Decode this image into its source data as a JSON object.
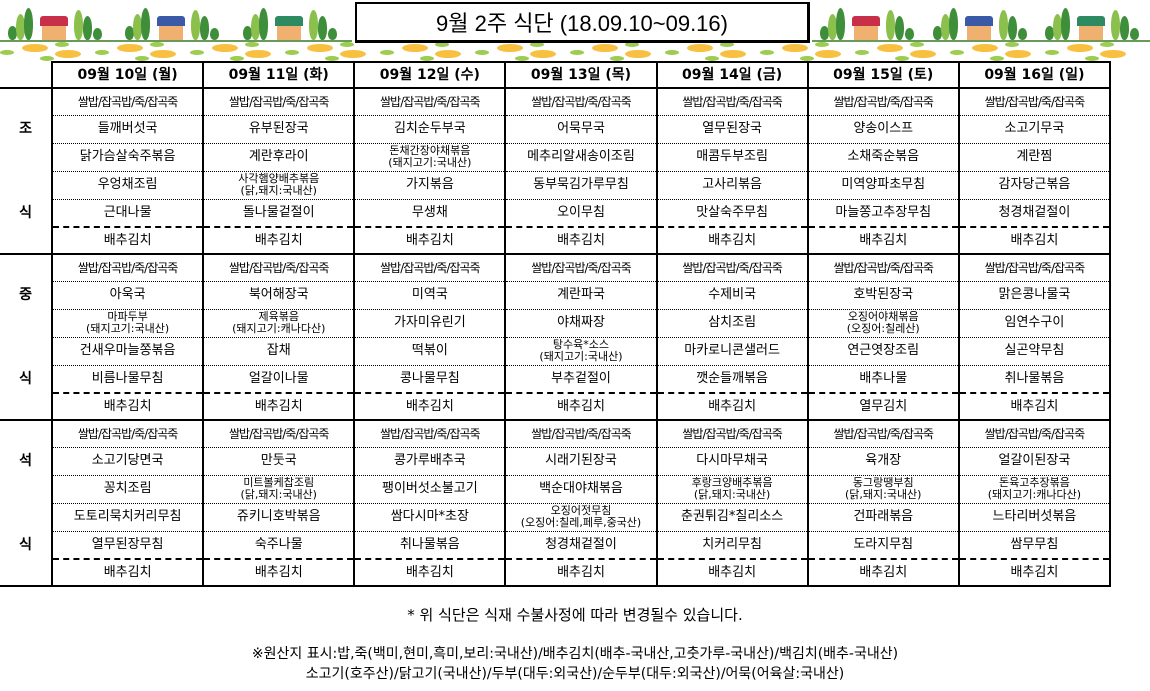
{
  "title": "9월 2주 식단 (18.09.10~09.16)",
  "days": [
    "09월  10일 (월)",
    "09월  11일 (화)",
    "09월  12일 (수)",
    "09월  13일 (목)",
    "09월  14일 (금)",
    "09월  15일 (토)",
    "09월  16일 (일)"
  ],
  "meals": [
    {
      "label_top": "조",
      "label_bottom": "식",
      "rows": [
        [
          "쌀밥/잡곡밥/죽/잡곡죽",
          "쌀밥/잡곡밥/죽/잡곡죽",
          "쌀밥/잡곡밥/죽/잡곡죽",
          "쌀밥/잡곡밥/죽/잡곡죽",
          "쌀밥/잡곡밥/죽/잡곡죽",
          "쌀밥/잡곡밥/죽/잡곡죽",
          "쌀밥/잡곡밥/죽/잡곡죽"
        ],
        [
          "들깨버섯국",
          "유부된장국",
          "김치순두부국",
          "어묵무국",
          "열무된장국",
          "양송이스프",
          "소고기무국"
        ],
        [
          "닭가슴살숙주볶음",
          "계란후라이",
          "돈채간장야채볶음\n(돼지고기:국내산)",
          "메추리알새송이조림",
          "매콤두부조림",
          "소채죽순볶음",
          "계란찜"
        ],
        [
          "우엉채조림",
          "사각햄양배추볶음\n(닭,돼지:국내산)",
          "가지볶음",
          "동부묵김가루무침",
          "고사리볶음",
          "미역양파초무침",
          "감자당근볶음"
        ],
        [
          "근대나물",
          "돌나물겉절이",
          "무생채",
          "오이무침",
          "맛살숙주무침",
          "마늘쫑고추장무침",
          "청경채겉절이"
        ],
        [
          "배추김치",
          "배추김치",
          "배추김치",
          "배추김치",
          "배추김치",
          "배추김치",
          "배추김치"
        ]
      ]
    },
    {
      "label_top": "중",
      "label_bottom": "식",
      "rows": [
        [
          "쌀밥/잡곡밥/죽/잡곡죽",
          "쌀밥/잡곡밥/죽/잡곡죽",
          "쌀밥/잡곡밥/죽/잡곡죽",
          "쌀밥/잡곡밥/죽/잡곡죽",
          "쌀밥/잡곡밥/죽/잡곡죽",
          "쌀밥/잡곡밥/죽/잡곡죽",
          "쌀밥/잡곡밥/죽/잡곡죽"
        ],
        [
          "아욱국",
          "북어해장국",
          "미역국",
          "계란파국",
          "수제비국",
          "호박된장국",
          "맑은콩나물국"
        ],
        [
          "마파두부\n(돼지고기:국내산)",
          "제육볶음\n(돼지고기:캐나다산)",
          "가자미유린기",
          "야채짜장",
          "삼치조림",
          "오징어야채볶음\n(오징어:칠레산)",
          "임연수구이"
        ],
        [
          "건새우마늘쫑볶음",
          "잡채",
          "떡볶이",
          "탕수육*소스\n(돼지고기:국내산)",
          "마카로니콘샐러드",
          "연근엿장조림",
          "실곤약무침"
        ],
        [
          "비름나물무침",
          "얼갈이나물",
          "콩나물무침",
          "부추겉절이",
          "깻순들깨볶음",
          "배추나물",
          "취나물볶음"
        ],
        [
          "배추김치",
          "배추김치",
          "배추김치",
          "배추김치",
          "배추김치",
          "열무김치",
          "배추김치"
        ]
      ]
    },
    {
      "label_top": "석",
      "label_bottom": "식",
      "rows": [
        [
          "쌀밥/잡곡밥/죽/잡곡죽",
          "쌀밥/잡곡밥/죽/잡곡죽",
          "쌀밥/잡곡밥/죽/잡곡죽",
          "쌀밥/잡곡밥/죽/잡곡죽",
          "쌀밥/잡곡밥/죽/잡곡죽",
          "쌀밥/잡곡밥/죽/잡곡죽",
          "쌀밥/잡곡밥/죽/잡곡죽"
        ],
        [
          "소고기당면국",
          "만둣국",
          "콩가루배추국",
          "시래기된장국",
          "다시마무채국",
          "육개장",
          "얼갈이된장국"
        ],
        [
          "꽁치조림",
          "미트볼케찹조림\n(닭,돼지:국내산)",
          "팽이버섯소불고기",
          "백순대야채볶음",
          "후랑크양배추볶음\n(닭,돼지:국내산)",
          "동그랑땡부침\n(닭,돼지:국내산)",
          "돈육고추장볶음\n(돼지고기:캐나다산)"
        ],
        [
          "도토리묵치커리무침",
          "쥬키니호박볶음",
          "쌈다시마*초장",
          "오징어젓무침\n(오징어:칠레,페루,중국산)",
          "춘권튀김*칠리소스",
          "건파래볶음",
          "느타리버섯볶음"
        ],
        [
          "열무된장무침",
          "숙주나물",
          "취나물볶음",
          "청경채겉절이",
          "치커리무침",
          "도라지무침",
          "쌈무무침"
        ],
        [
          "배추김치",
          "배추김치",
          "배추김치",
          "배추김치",
          "배추김치",
          "배추김치",
          "배추김치"
        ]
      ]
    }
  ],
  "notice": "*  위 식단은 식재 수불사정에 따라 변경될수 있습니다.",
  "origin_line1": "※원산지 표시:밥,죽(백미,현미,흑미,보리:국내산)/배추김치(배추-국내산,고춧가루-국내산)/백김치(배추-국내산)",
  "origin_line2": "소고기(호주산)/닭고기(국내산)/두부(대두:외국산)/순두부(대두:외국산)/어묵(어육살:국내산)"
}
